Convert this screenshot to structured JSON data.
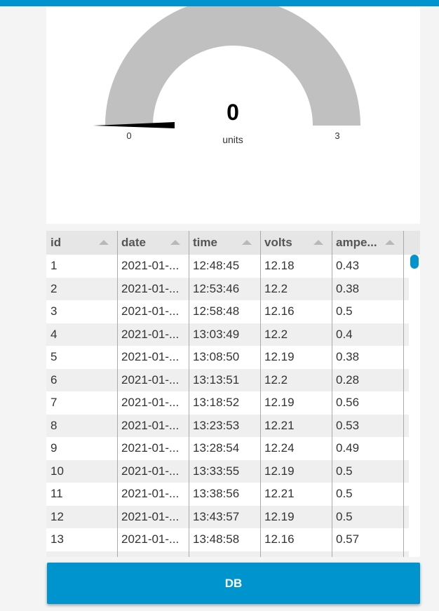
{
  "gauge": {
    "value": "0",
    "units": "units",
    "min": "0",
    "max": "3",
    "fraction": 0,
    "track_color": "#c0c0c0",
    "needle_color": "#000000"
  },
  "table": {
    "columns": [
      "id",
      "date",
      "time",
      "volts",
      "ampe..."
    ],
    "rows": [
      [
        "1",
        "2021-01-...",
        "12:48:45",
        "12.18",
        "0.43"
      ],
      [
        "2",
        "2021-01-...",
        "12:53:46",
        "12.2",
        "0.38"
      ],
      [
        "3",
        "2021-01-...",
        "12:58:48",
        "12.16",
        "0.5"
      ],
      [
        "4",
        "2021-01-...",
        "13:03:49",
        "12.2",
        "0.4"
      ],
      [
        "5",
        "2021-01-...",
        "13:08:50",
        "12.19",
        "0.38"
      ],
      [
        "6",
        "2021-01-...",
        "13:13:51",
        "12.2",
        "0.28"
      ],
      [
        "7",
        "2021-01-...",
        "13:18:52",
        "12.19",
        "0.56"
      ],
      [
        "8",
        "2021-01-...",
        "13:23:53",
        "12.21",
        "0.53"
      ],
      [
        "9",
        "2021-01-...",
        "13:28:54",
        "12.24",
        "0.49"
      ],
      [
        "10",
        "2021-01-...",
        "13:33:55",
        "12.19",
        "0.5"
      ],
      [
        "11",
        "2021-01-...",
        "13:38:56",
        "12.21",
        "0.5"
      ],
      [
        "12",
        "2021-01-...",
        "13:43:57",
        "12.19",
        "0.5"
      ],
      [
        "13",
        "2021-01-...",
        "13:48:58",
        "12.16",
        "0.57"
      ],
      [
        "",
        "",
        "",
        "",
        ""
      ]
    ]
  },
  "button": {
    "label": "DB"
  },
  "colors": {
    "accent": "#0094ce",
    "row_alt": "#efefef"
  }
}
